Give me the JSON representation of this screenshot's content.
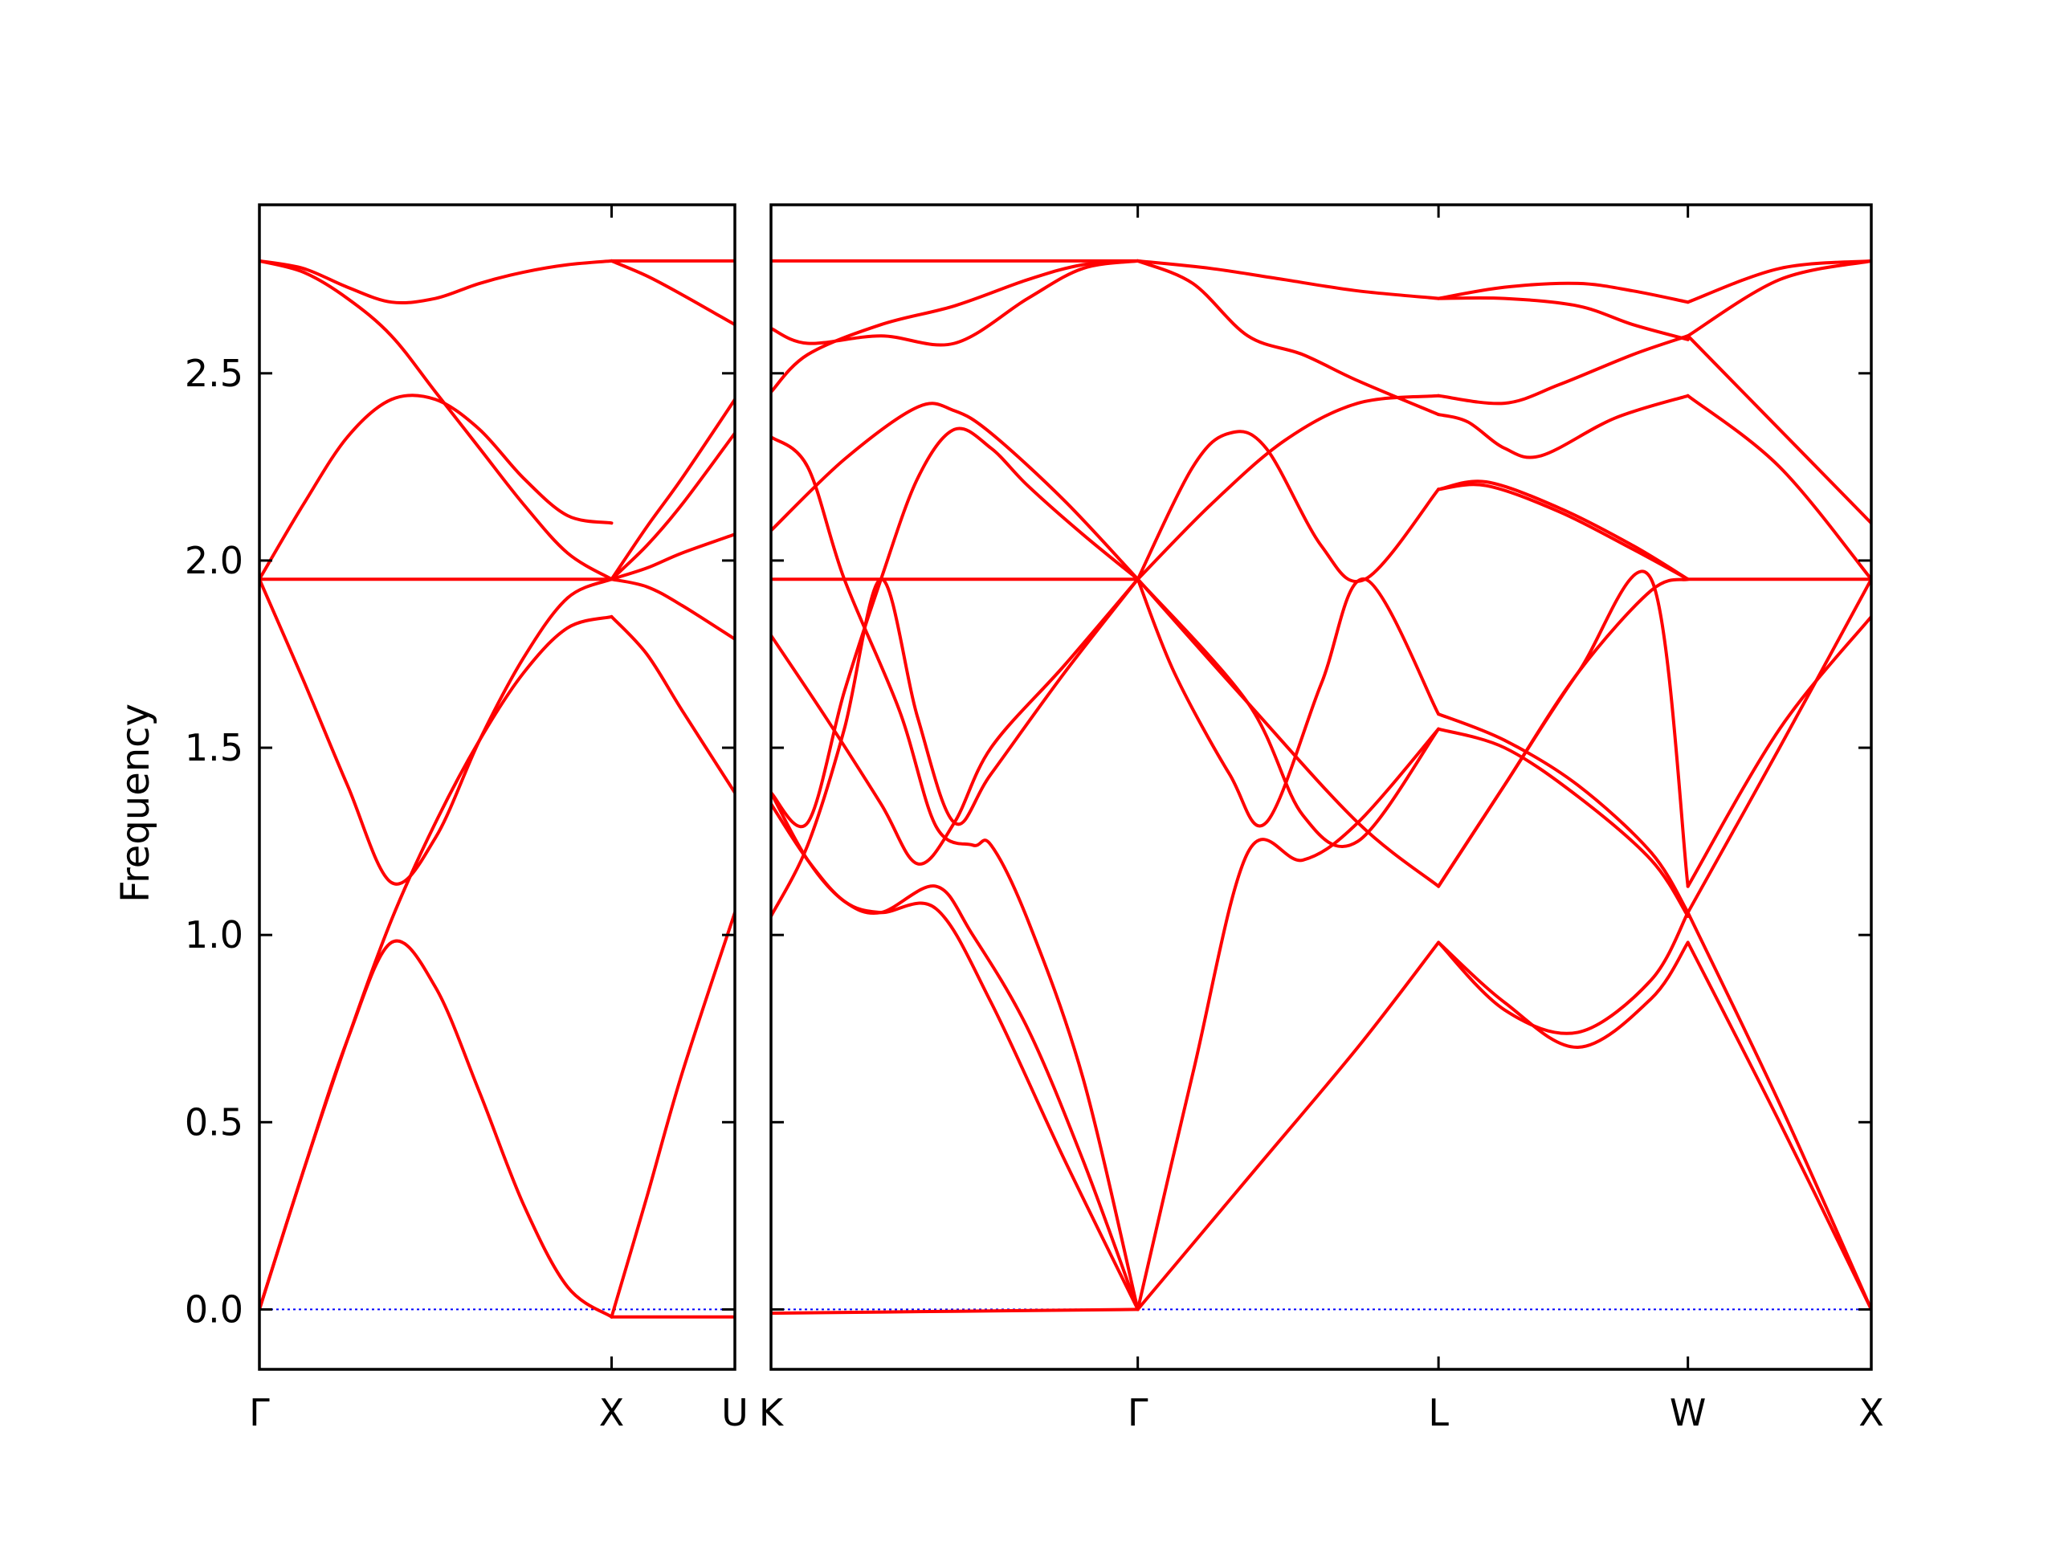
{
  "chart_data": {
    "type": "line",
    "ylabel": "Frequency",
    "ylim": [
      -0.16,
      2.95
    ],
    "yticks": [
      0.0,
      0.5,
      1.0,
      1.5,
      2.0,
      2.5
    ],
    "ytick_labels": [
      "0.0",
      "0.5",
      "1.0",
      "1.5",
      "2.0",
      "2.5"
    ],
    "grid": false,
    "legend": "none",
    "colors": {
      "bands": "#ff0000",
      "zero_line": "#0000ff",
      "frame": "#000000"
    },
    "path_labels": [
      "Γ",
      "X",
      "U",
      "K",
      "Γ",
      "L",
      "W",
      "X"
    ],
    "panels": [
      {
        "xlim": [
          0,
          1.35
        ],
        "ticks": [
          0,
          1.0
        ],
        "tick_labels": [
          "Γ",
          "X"
        ],
        "start_label": "Γ",
        "end_label": "U",
        "series": [
          {
            "x": [
              0,
              0.125,
              0.25,
              0.375,
              0.5,
              0.625,
              0.75,
              0.875,
              1.0
            ],
            "y": [
              0.0,
              0.37,
              0.72,
              0.98,
              0.86,
              0.58,
              0.28,
              0.06,
              -0.02
            ]
          },
          {
            "x": [
              0,
              0.125,
              0.25,
              0.375,
              0.5,
              0.625,
              0.75,
              0.875,
              1.0
            ],
            "y": [
              0.0,
              0.37,
              0.72,
              1.04,
              1.3,
              1.52,
              1.7,
              1.82,
              1.85
            ]
          },
          {
            "x": [
              0,
              0.125,
              0.25,
              0.375,
              0.5,
              0.625,
              0.75,
              0.875,
              1.0
            ],
            "y": [
              1.95,
              1.68,
              1.4,
              1.14,
              1.26,
              1.52,
              1.74,
              1.9,
              1.95
            ]
          },
          {
            "x": [
              0,
              0.125,
              0.25,
              0.375,
              0.5,
              0.625,
              0.75,
              0.875,
              1.0
            ],
            "y": [
              1.95,
              1.95,
              1.95,
              1.95,
              1.95,
              1.95,
              1.95,
              1.95,
              1.95
            ]
          },
          {
            "x": [
              0,
              0.125,
              0.25,
              0.375,
              0.5,
              0.625,
              0.75,
              0.875,
              1.0
            ],
            "y": [
              1.95,
              2.15,
              2.33,
              2.43,
              2.43,
              2.35,
              2.22,
              2.12,
              2.1
            ]
          },
          {
            "x": [
              0,
              0.125,
              0.25,
              0.375,
              0.5,
              0.625,
              0.75,
              0.875,
              1.0
            ],
            "y": [
              2.8,
              2.77,
              2.7,
              2.6,
              2.45,
              2.3,
              2.15,
              2.02,
              1.95
            ]
          },
          {
            "x": [
              0,
              0.125,
              0.25,
              0.375,
              0.5,
              0.625,
              0.75,
              0.875,
              1.0
            ],
            "y": [
              2.8,
              2.78,
              2.73,
              2.69,
              2.7,
              2.74,
              2.77,
              2.79,
              2.8
            ]
          },
          {
            "x": [
              1.0,
              1.35
            ],
            "y": [
              2.8,
              2.8
            ]
          },
          {
            "x": [
              1.0,
              1.1,
              1.2,
              1.35
            ],
            "y": [
              2.8,
              2.76,
              2.71,
              2.63
            ]
          },
          {
            "x": [
              1.0,
              1.1,
              1.2,
              1.35
            ],
            "y": [
              1.95,
              2.09,
              2.22,
              2.43
            ]
          },
          {
            "x": [
              1.0,
              1.1,
              1.2,
              1.35
            ],
            "y": [
              1.95,
              2.04,
              2.15,
              2.34
            ]
          },
          {
            "x": [
              1.0,
              1.1,
              1.2,
              1.35
            ],
            "y": [
              1.95,
              1.98,
              2.02,
              2.07
            ]
          },
          {
            "x": [
              1.0,
              1.1,
              1.2,
              1.35
            ],
            "y": [
              1.95,
              1.93,
              1.88,
              1.79
            ]
          },
          {
            "x": [
              1.0,
              1.1,
              1.2,
              1.35
            ],
            "y": [
              1.85,
              1.75,
              1.6,
              1.38
            ]
          },
          {
            "x": [
              1.0,
              1.1,
              1.2,
              1.35
            ],
            "y": [
              -0.02,
              0.3,
              0.63,
              1.06
            ]
          },
          {
            "x": [
              1.0,
              1.35
            ],
            "y": [
              -0.02,
              -0.02
            ]
          }
        ]
      },
      {
        "xlim": [
          0,
          3.0
        ],
        "ticks": [
          0,
          1.0,
          1.82,
          2.5,
          3.0
        ],
        "tick_labels": [
          "K",
          "Γ",
          "L",
          "W",
          "X"
        ],
        "series": [
          {
            "x": [
              0,
              0.3,
              0.6,
              1.0
            ],
            "y": [
              2.8,
              2.8,
              2.8,
              2.8
            ]
          },
          {
            "x": [
              0,
              0.1,
              0.3,
              0.5,
              0.7,
              0.85,
              1.0
            ],
            "y": [
              2.62,
              2.58,
              2.6,
              2.58,
              2.7,
              2.78,
              2.8
            ]
          },
          {
            "x": [
              0,
              0.1,
              0.3,
              0.5,
              0.7,
              0.85,
              1.0
            ],
            "y": [
              2.45,
              2.55,
              2.63,
              2.68,
              2.75,
              2.79,
              2.8
            ]
          },
          {
            "x": [
              0,
              0.2,
              0.4,
              0.5,
              0.6,
              0.8,
              1.0
            ],
            "y": [
              2.08,
              2.27,
              2.41,
              2.4,
              2.34,
              2.16,
              1.95
            ]
          },
          {
            "x": [
              0,
              0.1,
              0.2,
              0.35,
              0.45,
              0.55,
              0.6,
              0.7,
              0.85,
              1.0
            ],
            "y": [
              2.33,
              2.25,
              1.95,
              1.6,
              1.29,
              1.24,
              1.24,
              1.04,
              0.62,
              0.0
            ]
          },
          {
            "x": [
              0,
              0.1,
              0.2,
              0.3,
              0.4,
              0.5,
              0.6,
              0.7,
              0.85,
              1.0
            ],
            "y": [
              1.38,
              1.3,
              1.65,
              1.95,
              2.22,
              2.35,
              2.3,
              2.2,
              2.07,
              1.95
            ]
          },
          {
            "x": [
              0,
              0.1,
              0.2,
              0.3,
              0.4,
              0.5,
              0.6,
              0.7,
              0.85,
              1.0
            ],
            "y": [
              1.95,
              1.95,
              1.95,
              1.95,
              1.95,
              1.95,
              1.95,
              1.95,
              1.95,
              1.95
            ]
          },
          {
            "x": [
              0,
              0.15,
              0.3,
              0.4,
              0.5,
              0.6,
              0.8,
              1.0
            ],
            "y": [
              1.8,
              1.58,
              1.35,
              1.19,
              1.3,
              1.5,
              1.72,
              1.95
            ]
          },
          {
            "x": [
              0,
              0.1,
              0.2,
              0.3,
              0.4,
              0.5,
              0.6,
              0.8,
              1.0
            ],
            "y": [
              1.05,
              1.24,
              1.55,
              1.95,
              1.58,
              1.3,
              1.43,
              1.7,
              1.95
            ]
          },
          {
            "x": [
              0,
              0.1,
              0.2,
              0.3,
              0.45,
              0.6,
              0.8,
              1.0
            ],
            "y": [
              1.38,
              1.2,
              1.09,
              1.06,
              1.07,
              0.82,
              0.4,
              0.0
            ]
          },
          {
            "x": [
              0,
              0.1,
              0.2,
              0.3,
              0.45,
              0.55,
              0.7,
              0.85,
              1.0
            ],
            "y": [
              1.35,
              1.2,
              1.09,
              1.06,
              1.13,
              1.0,
              0.75,
              0.4,
              0.0
            ]
          },
          {
            "x": [
              0,
              0.5,
              1.0
            ],
            "y": [
              -0.01,
              -0.005,
              0.0
            ]
          },
          {
            "x": [
              1.0,
              1.2,
              1.4,
              1.6,
              1.82
            ],
            "y": [
              2.8,
              2.78,
              2.75,
              2.72,
              2.7
            ]
          },
          {
            "x": [
              1.0,
              1.15,
              1.3,
              1.45,
              1.6,
              1.82
            ],
            "y": [
              2.8,
              2.74,
              2.6,
              2.55,
              2.48,
              2.39
            ]
          },
          {
            "x": [
              1.0,
              1.2,
              1.4,
              1.6,
              1.82
            ],
            "y": [
              1.95,
              2.15,
              2.32,
              2.42,
              2.44
            ]
          },
          {
            "x": [
              1.0,
              1.15,
              1.25,
              1.35,
              1.5,
              1.62,
              1.82
            ],
            "y": [
              1.95,
              2.25,
              2.34,
              2.3,
              2.04,
              1.95,
              2.19
            ]
          },
          {
            "x": [
              1.0,
              1.1,
              1.25,
              1.35,
              1.5,
              1.62,
              1.82
            ],
            "y": [
              1.95,
              1.7,
              1.43,
              1.3,
              1.67,
              1.95,
              1.59
            ]
          },
          {
            "x": [
              1.0,
              1.3,
              1.6,
              1.82
            ],
            "y": [
              1.95,
              1.62,
              1.3,
              1.13
            ]
          },
          {
            "x": [
              1.0,
              1.3,
              1.45,
              1.6,
              1.82
            ],
            "y": [
              1.95,
              1.62,
              1.32,
              1.25,
              1.55
            ]
          },
          {
            "x": [
              1.0,
              1.15,
              1.3,
              1.45,
              1.6,
              1.82
            ],
            "y": [
              0.0,
              0.63,
              1.22,
              1.2,
              1.3,
              1.55
            ]
          },
          {
            "x": [
              1.0,
              1.3,
              1.6,
              1.82
            ],
            "y": [
              0.0,
              0.35,
              0.7,
              0.98
            ]
          },
          {
            "x": [
              1.82,
              2.0,
              2.2,
              2.35,
              2.5
            ],
            "y": [
              2.7,
              2.73,
              2.74,
              2.72,
              2.69
            ]
          },
          {
            "x": [
              1.82,
              2.0,
              2.2,
              2.35,
              2.5
            ],
            "y": [
              2.7,
              2.7,
              2.68,
              2.63,
              2.59
            ]
          },
          {
            "x": [
              1.82,
              2.0,
              2.15,
              2.35,
              2.5
            ],
            "y": [
              2.44,
              2.42,
              2.47,
              2.55,
              2.6
            ]
          },
          {
            "x": [
              1.82,
              1.9,
              2.0,
              2.1,
              2.3,
              2.5
            ],
            "y": [
              2.39,
              2.37,
              2.3,
              2.28,
              2.38,
              2.44
            ]
          },
          {
            "x": [
              1.82,
              1.95,
              2.15,
              2.35,
              2.5
            ],
            "y": [
              2.19,
              2.21,
              2.14,
              2.04,
              1.95
            ]
          },
          {
            "x": [
              1.82,
              1.95,
              2.15,
              2.35,
              2.5
            ],
            "y": [
              2.19,
              2.2,
              2.13,
              2.03,
              1.95
            ]
          },
          {
            "x": [
              1.82,
              2.0,
              2.2,
              2.4,
              2.5
            ],
            "y": [
              1.59,
              1.52,
              1.4,
              1.22,
              1.06
            ]
          },
          {
            "x": [
              1.82,
              2.0,
              2.2,
              2.4,
              2.5
            ],
            "y": [
              1.55,
              1.5,
              1.37,
              1.2,
              1.05
            ]
          },
          {
            "x": [
              1.82,
              2.0,
              2.2,
              2.4,
              2.5
            ],
            "y": [
              1.13,
              1.4,
              1.7,
              1.92,
              1.95
            ]
          },
          {
            "x": [
              1.82,
              2.0,
              2.2,
              2.4,
              2.5
            ],
            "y": [
              0.98,
              0.82,
              0.7,
              0.83,
              0.98
            ]
          },
          {
            "x": [
              1.82,
              2.0,
              2.2,
              2.4,
              2.5
            ],
            "y": [
              0.98,
              0.8,
              0.74,
              0.88,
              1.06
            ]
          },
          {
            "x": [
              1.82,
              2.0,
              2.2,
              2.4,
              2.5
            ],
            "y": [
              1.13,
              1.4,
              1.7,
              1.95,
              1.13
            ]
          },
          {
            "x": [
              2.5,
              2.75,
              3.0
            ],
            "y": [
              2.69,
              2.78,
              2.8
            ]
          },
          {
            "x": [
              2.5,
              2.75,
              3.0
            ],
            "y": [
              2.6,
              2.75,
              2.8
            ]
          },
          {
            "x": [
              2.5,
              2.75,
              3.0
            ],
            "y": [
              2.6,
              2.35,
              2.1
            ]
          },
          {
            "x": [
              2.5,
              2.75,
              3.0
            ],
            "y": [
              2.44,
              2.25,
              1.95
            ]
          },
          {
            "x": [
              2.5,
              2.75,
              3.0
            ],
            "y": [
              1.95,
              1.95,
              1.95
            ]
          },
          {
            "x": [
              2.5,
              2.75,
              3.0
            ],
            "y": [
              1.13,
              1.55,
              1.85
            ]
          },
          {
            "x": [
              2.5,
              2.75,
              3.0
            ],
            "y": [
              1.06,
              1.5,
              1.95
            ]
          },
          {
            "x": [
              2.5,
              2.75,
              3.0
            ],
            "y": [
              0.98,
              0.5,
              0.0
            ]
          },
          {
            "x": [
              2.5,
              2.75,
              3.0
            ],
            "y": [
              1.06,
              0.55,
              0.0
            ]
          }
        ]
      }
    ]
  }
}
